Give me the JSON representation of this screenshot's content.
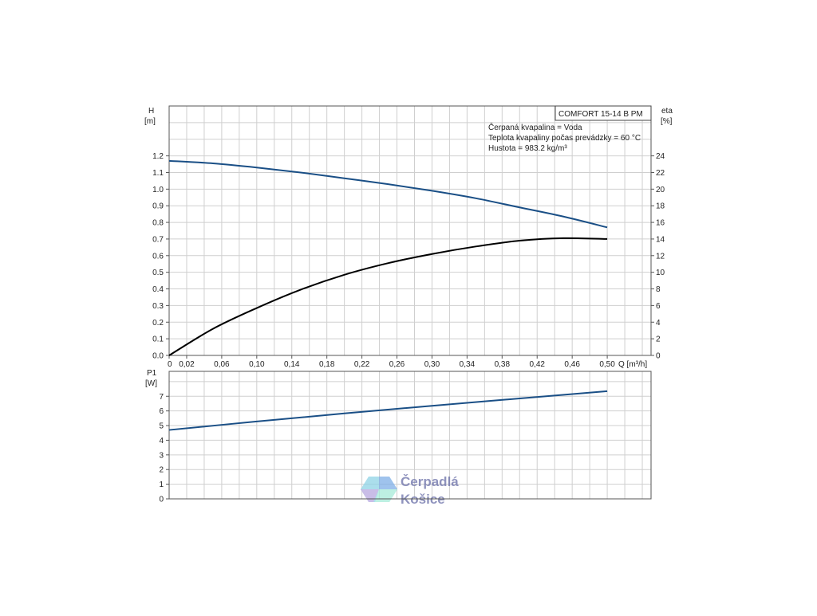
{
  "chart_data": [
    {
      "type": "line",
      "title": "COMFORT  15-14 B PM",
      "annotations": [
        "Čerpaná kvapalina = Voda",
        "Teplota kvapaliny počas prevádzky = 60 °C",
        "Hustota = 983.2 kg/m³"
      ],
      "xlabel": "Q [m³/h]",
      "ylabel": [
        "H",
        "[m]"
      ],
      "y2label": [
        "eta",
        "[%]"
      ],
      "x_ticks": [
        "0",
        "0,02",
        "0,06",
        "0,10",
        "0,14",
        "0,18",
        "0,22",
        "0,26",
        "0,30",
        "0,34",
        "0,38",
        "0,42",
        "0,46",
        "0,50"
      ],
      "y_ticks": [
        "0.0",
        "0.1",
        "0.2",
        "0.3",
        "0.4",
        "0.5",
        "0.6",
        "0.7",
        "0.8",
        "0.9",
        "1.0",
        "1.1",
        "1.2"
      ],
      "y2_ticks": [
        "0",
        "2",
        "4",
        "6",
        "8",
        "10",
        "12",
        "14",
        "16",
        "18",
        "20",
        "22",
        "24"
      ],
      "xlim": [
        0,
        0.55
      ],
      "ylim": [
        0,
        1.5
      ],
      "y2lim": [
        0,
        30
      ],
      "grid": true,
      "series": [
        {
          "key": "H",
          "axis": "left",
          "color": "#1a4f86",
          "x": [
            0,
            0.05,
            0.1,
            0.15,
            0.2,
            0.25,
            0.3,
            0.35,
            0.4,
            0.45,
            0.5
          ],
          "y": [
            1.17,
            1.155,
            1.13,
            1.1,
            1.065,
            1.03,
            0.99,
            0.945,
            0.89,
            0.835,
            0.77
          ]
        },
        {
          "key": "eta",
          "axis": "right",
          "color": "#000000",
          "x": [
            0,
            0.05,
            0.1,
            0.15,
            0.2,
            0.25,
            0.3,
            0.35,
            0.4,
            0.45,
            0.5
          ],
          "y": [
            0,
            3.2,
            5.7,
            7.9,
            9.7,
            11.1,
            12.2,
            13.1,
            13.8,
            14.1,
            14.0
          ]
        }
      ]
    },
    {
      "type": "line",
      "ylabel": [
        "P1",
        "[W]"
      ],
      "y_ticks": [
        "0",
        "1",
        "2",
        "3",
        "4",
        "5",
        "6",
        "7"
      ],
      "xlim": [
        0,
        0.55
      ],
      "ylim": [
        0,
        8.7
      ],
      "grid": true,
      "series": [
        {
          "key": "P1",
          "color": "#1a4f86",
          "x": [
            0,
            0.1,
            0.2,
            0.3,
            0.4,
            0.5
          ],
          "y": [
            4.7,
            5.28,
            5.83,
            6.35,
            6.85,
            7.35
          ]
        }
      ]
    }
  ],
  "logo": {
    "line1": "Čerpadlá",
    "line2": "Košice"
  }
}
